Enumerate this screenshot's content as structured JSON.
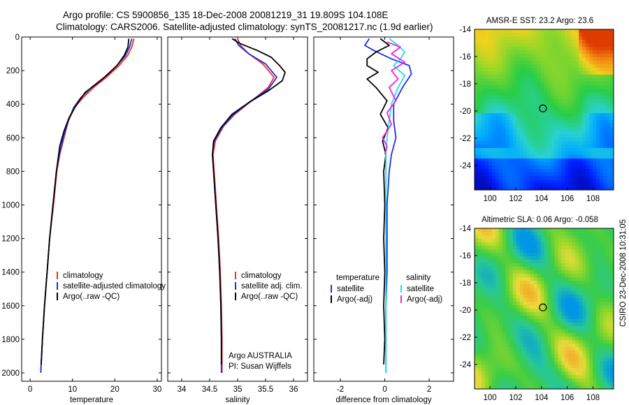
{
  "figure": {
    "title_line1": "Argo profile: CS 5900856_135 18-Dec-2008 20081219_31 19.809S 104.108E",
    "title_line2": "Climatology: CARS2006. Satellite-adjusted climatology: synTS_20081217.nc (1.9d earlier)",
    "side_stamp": "CSIRO 23-Dec-2008 10:31:05"
  },
  "colors": {
    "climatology": "#ff2a1a",
    "satellite": "#1a2ee6",
    "argo": "#000000",
    "cyan": "#20e0e8",
    "magenta": "#f020e0"
  },
  "chart_data": [
    {
      "id": "temperature",
      "type": "line",
      "xlabel": "temperature",
      "ylabel": "",
      "xlim": [
        -2,
        31
      ],
      "ylim": [
        2050,
        0
      ],
      "xticks": [
        0,
        10,
        20,
        30
      ],
      "yticks": [
        0,
        200,
        400,
        600,
        800,
        1000,
        1200,
        1400,
        1600,
        1800,
        2000
      ],
      "legend": {
        "position": "lower-left",
        "entries": [
          "climatology",
          "satellite-adjusted climatology",
          "Argo(..raw -QC)"
        ]
      },
      "series": [
        {
          "name": "climatology",
          "color": "#ff2a1a",
          "points": [
            [
              24.5,
              10
            ],
            [
              24,
              60
            ],
            [
              23,
              110
            ],
            [
              21,
              170
            ],
            [
              18,
              240
            ],
            [
              15,
              300
            ],
            [
              12.5,
              360
            ],
            [
              10.5,
              420
            ],
            [
              9,
              500
            ],
            [
              8,
              600
            ],
            [
              7,
              700
            ],
            [
              6.3,
              800
            ],
            [
              5.5,
              1000
            ],
            [
              4.6,
              1200
            ],
            [
              4,
              1400
            ],
            [
              3.4,
              1600
            ],
            [
              2.9,
              1800
            ],
            [
              2.5,
              2000
            ]
          ]
        },
        {
          "name": "satellite-adjusted climatology",
          "color": "#1a2ee6",
          "points": [
            [
              24,
              10
            ],
            [
              23.5,
              60
            ],
            [
              22.5,
              110
            ],
            [
              20.5,
              170
            ],
            [
              17.5,
              240
            ],
            [
              14.5,
              300
            ],
            [
              12,
              360
            ],
            [
              10.3,
              420
            ],
            [
              9,
              500
            ],
            [
              7.8,
              600
            ],
            [
              6.9,
              700
            ],
            [
              6.2,
              800
            ],
            [
              5.4,
              1000
            ],
            [
              4.6,
              1200
            ],
            [
              4,
              1400
            ],
            [
              3.4,
              1600
            ],
            [
              2.9,
              1800
            ],
            [
              2.5,
              2000
            ]
          ]
        },
        {
          "name": "Argo(..raw -QC)",
          "color": "#000000",
          "points": [
            [
              23.3,
              10
            ],
            [
              23.1,
              60
            ],
            [
              22.2,
              110
            ],
            [
              20.5,
              170
            ],
            [
              18,
              230
            ],
            [
              15.6,
              280
            ],
            [
              13,
              330
            ],
            [
              11,
              400
            ],
            [
              9.2,
              480
            ],
            [
              8,
              560
            ],
            [
              7,
              650
            ],
            [
              6.2,
              800
            ],
            [
              5.4,
              1000
            ],
            [
              4.6,
              1200
            ],
            [
              4,
              1400
            ],
            [
              3.4,
              1600
            ],
            [
              2.9,
              1800
            ],
            [
              2.6,
              1950
            ]
          ]
        }
      ]
    },
    {
      "id": "salinity",
      "type": "line",
      "xlabel": "salinity",
      "ylabel": "",
      "xlim": [
        33.75,
        36.25
      ],
      "ylim": [
        2050,
        0
      ],
      "xticks": [
        34,
        34.5,
        35,
        35.5,
        36
      ],
      "yticks": [
        0,
        200,
        400,
        600,
        800,
        1000,
        1200,
        1400,
        1600,
        1800,
        2000
      ],
      "legend": {
        "position": "lower-right",
        "entries": [
          "climatology",
          "satellite adj. clim.",
          "Argo(..raw -QC)"
        ]
      },
      "annotation_line1": "Argo AUSTRALIA",
      "annotation_line2": "PI: Susan Wijffels",
      "series": [
        {
          "name": "climatology",
          "color": "#ff2a1a",
          "points": [
            [
              35,
              10
            ],
            [
              35.05,
              50
            ],
            [
              35.2,
              100
            ],
            [
              35.45,
              160
            ],
            [
              35.65,
              240
            ],
            [
              35.55,
              300
            ],
            [
              35.25,
              380
            ],
            [
              34.95,
              460
            ],
            [
              34.75,
              530
            ],
            [
              34.6,
              620
            ],
            [
              34.56,
              700
            ],
            [
              34.58,
              800
            ],
            [
              34.62,
              1000
            ],
            [
              34.66,
              1200
            ],
            [
              34.69,
              1400
            ],
            [
              34.71,
              1600
            ],
            [
              34.72,
              1800
            ],
            [
              34.72,
              2000
            ]
          ]
        },
        {
          "name": "satellite adj. clim.",
          "color": "#1a2ee6",
          "points": [
            [
              34.95,
              10
            ],
            [
              35.02,
              50
            ],
            [
              35.2,
              100
            ],
            [
              35.5,
              160
            ],
            [
              35.7,
              240
            ],
            [
              35.55,
              310
            ],
            [
              35.2,
              390
            ],
            [
              34.9,
              470
            ],
            [
              34.72,
              540
            ],
            [
              34.58,
              620
            ],
            [
              34.55,
              700
            ],
            [
              34.57,
              800
            ],
            [
              34.61,
              1000
            ],
            [
              34.65,
              1200
            ],
            [
              34.68,
              1400
            ],
            [
              34.7,
              1600
            ],
            [
              34.71,
              1800
            ],
            [
              34.71,
              2000
            ]
          ]
        },
        {
          "name": "Argo(..raw -QC)",
          "color": "#000000",
          "points": [
            [
              34.9,
              10
            ],
            [
              35.05,
              40
            ],
            [
              35.35,
              80
            ],
            [
              35.6,
              120
            ],
            [
              35.75,
              170
            ],
            [
              35.85,
              210
            ],
            [
              35.8,
              260
            ],
            [
              35.55,
              320
            ],
            [
              35.2,
              390
            ],
            [
              34.9,
              460
            ],
            [
              34.7,
              540
            ],
            [
              34.57,
              620
            ],
            [
              34.55,
              700
            ],
            [
              34.57,
              800
            ],
            [
              34.61,
              1000
            ],
            [
              34.65,
              1200
            ],
            [
              34.68,
              1400
            ],
            [
              34.7,
              1600
            ],
            [
              34.71,
              1800
            ],
            [
              34.71,
              1950
            ]
          ]
        }
      ]
    },
    {
      "id": "difference",
      "type": "line",
      "xlabel": "difference from climatology",
      "ylabel": "",
      "xlim": [
        -3.2,
        3.1
      ],
      "ylim": [
        2050,
        0
      ],
      "xticks": [
        -2,
        0,
        2
      ],
      "yticks": [
        0,
        200,
        400,
        600,
        800,
        1000,
        1200,
        1400,
        1600,
        1800,
        2000
      ],
      "legend": {
        "position": "lower",
        "group1_title": "temperature",
        "group2_title": "salinity",
        "entries": [
          "satellite",
          "Argo(-adj)",
          "satellite",
          "Argo(-adj)"
        ]
      },
      "series": [
        {
          "name": "temperature satellite",
          "color": "#1a2ee6",
          "points": [
            [
              -0.7,
              10
            ],
            [
              -0.9,
              50
            ],
            [
              -0.5,
              80
            ],
            [
              0.3,
              130
            ],
            [
              1.1,
              170
            ],
            [
              1.2,
              220
            ],
            [
              0.8,
              300
            ],
            [
              0.4,
              400
            ],
            [
              0.4,
              500
            ],
            [
              0.5,
              600
            ],
            [
              0.3,
              700
            ],
            [
              0.2,
              800
            ],
            [
              0.1,
              1000
            ],
            [
              0.1,
              1200
            ],
            [
              0.1,
              1400
            ],
            [
              0.05,
              1600
            ],
            [
              0.05,
              1800
            ],
            [
              0.05,
              2000
            ]
          ]
        },
        {
          "name": "temperature Argo(-adj)",
          "color": "#000000",
          "points": [
            [
              -0.2,
              10
            ],
            [
              0.2,
              50
            ],
            [
              -0.4,
              90
            ],
            [
              -0.8,
              130
            ],
            [
              -0.8,
              170
            ],
            [
              -0.3,
              210
            ],
            [
              -0.8,
              250
            ],
            [
              -0.4,
              300
            ],
            [
              0.1,
              380
            ],
            [
              -0.2,
              460
            ],
            [
              0.15,
              540
            ],
            [
              -0.1,
              620
            ],
            [
              0.05,
              700
            ],
            [
              -0.05,
              800
            ],
            [
              0,
              1000
            ],
            [
              -0.05,
              1200
            ],
            [
              0,
              1400
            ],
            [
              -0.05,
              1600
            ],
            [
              0,
              1800
            ],
            [
              -0.05,
              1950
            ]
          ]
        },
        {
          "name": "salinity satellite",
          "color": "#20e0e8",
          "points": [
            [
              0.2,
              10
            ],
            [
              0.6,
              50
            ],
            [
              0.9,
              90
            ],
            [
              0.7,
              130
            ],
            [
              0.4,
              170
            ],
            [
              0.9,
              230
            ],
            [
              0.6,
              300
            ],
            [
              0.3,
              400
            ],
            [
              0.2,
              500
            ],
            [
              0.1,
              600
            ],
            [
              0.05,
              700
            ],
            [
              0.05,
              800
            ],
            [
              0.05,
              1000
            ],
            [
              0.05,
              1200
            ],
            [
              0.05,
              1400
            ],
            [
              0.05,
              1600
            ],
            [
              0.05,
              1800
            ],
            [
              0.05,
              2000
            ]
          ]
        },
        {
          "name": "salinity Argo(-adj)",
          "color": "#f020e0",
          "points": [
            [
              0.1,
              30
            ],
            [
              0.7,
              60
            ],
            [
              0.3,
              100
            ],
            [
              0.9,
              150
            ],
            [
              0.3,
              200
            ],
            [
              0.6,
              250
            ],
            [
              0.2,
              300
            ],
            [
              0.5,
              380
            ],
            [
              0.1,
              450
            ],
            [
              0.3,
              520
            ],
            [
              -0.1,
              600
            ],
            [
              0.1,
              650
            ],
            [
              0,
              700
            ]
          ]
        }
      ]
    },
    {
      "id": "sst_map",
      "type": "heatmap",
      "title": "AMSR-E SST: 23.2  Argo: 23.6",
      "xlim": [
        98.8,
        109.6
      ],
      "ylim": [
        -25.8,
        -14
      ],
      "xticks": [
        100,
        102,
        104,
        106,
        108
      ],
      "yticks": [
        -14,
        -16,
        -18,
        -20,
        -22,
        -24
      ],
      "marker": {
        "lon": 104.108,
        "lat": -19.809
      }
    },
    {
      "id": "sla_map",
      "type": "heatmap",
      "title": "Altimetric SLA: 0.06  Argo: -0.058",
      "xlim": [
        98.8,
        109.6
      ],
      "ylim": [
        -25.8,
        -14
      ],
      "xticks": [
        100,
        102,
        104,
        106,
        108
      ],
      "yticks": [
        -14,
        -16,
        -18,
        -20,
        -22,
        -24
      ],
      "marker": {
        "lon": 104.108,
        "lat": -19.809
      }
    }
  ]
}
